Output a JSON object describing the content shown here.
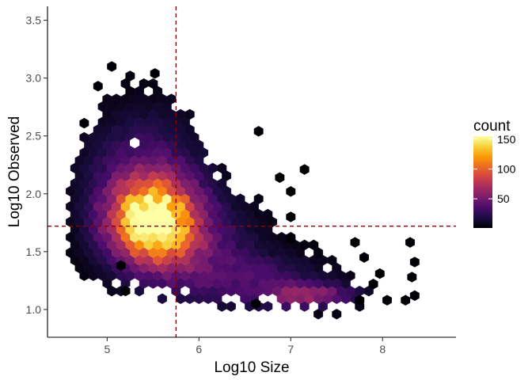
{
  "chart_data": {
    "type": "heatmap",
    "subtype": "hexbin",
    "title": "",
    "xlabel": "Log10 Size",
    "ylabel": "Log10 Observed",
    "xlim": [
      4.35,
      8.8
    ],
    "ylim": [
      0.76,
      3.62
    ],
    "xticks": [
      5,
      6,
      7,
      8
    ],
    "xtick_labels": [
      "5",
      "6",
      "7",
      "8"
    ],
    "yticks": [
      1.0,
      1.5,
      2.0,
      2.5,
      3.0,
      3.5
    ],
    "ytick_labels": [
      "1.0",
      "1.5",
      "2.0",
      "2.5",
      "3.0",
      "3.5"
    ],
    "grid": false,
    "vline": {
      "x": 5.75,
      "color": "#8b0000",
      "style": "dashed"
    },
    "hline": {
      "y": 1.72,
      "color": "#8b0000",
      "style": "dashed"
    },
    "color_scale": {
      "name": "count",
      "palette": "inferno",
      "min": 1,
      "max": 155,
      "stops": [
        "#000004",
        "#1b0c41",
        "#4a0c6b",
        "#781c6d",
        "#a52c60",
        "#cf4446",
        "#ed6925",
        "#fb9b06",
        "#f7d13d",
        "#fcffa4"
      ]
    },
    "legend": {
      "title": "count",
      "position": "right",
      "labels": [
        "150",
        "100",
        "50"
      ],
      "values": [
        150,
        100,
        50
      ]
    },
    "density_model": {
      "description": "hexbin counts estimated from the image",
      "bin_width_x": 0.1,
      "bin_height_y": 0.0664,
      "components": [
        {
          "cx": 5.5,
          "cy": 1.76,
          "sx": 0.32,
          "sy": 0.24,
          "peak": 150
        },
        {
          "cx": 5.4,
          "cy": 2.1,
          "sx": 0.45,
          "sy": 0.42,
          "peak": 38
        },
        {
          "cx": 6.0,
          "cy": 1.5,
          "sx": 0.5,
          "sy": 0.3,
          "peak": 30
        },
        {
          "cx": 7.2,
          "cy": 1.12,
          "sx": 0.35,
          "sy": 0.07,
          "peak": 55
        },
        {
          "cx": 6.7,
          "cy": 1.25,
          "sx": 0.55,
          "sy": 0.15,
          "peak": 26
        }
      ],
      "region": {
        "x_min": 4.62,
        "x_max": 7.85,
        "y_low_segments": [
          [
            4.62,
            1.3
          ],
          [
            5.0,
            1.15
          ],
          [
            5.5,
            1.1
          ],
          [
            5.9,
            1.05
          ],
          [
            6.3,
            1.02
          ],
          [
            7.0,
            0.96
          ],
          [
            7.5,
            0.96
          ],
          [
            7.85,
            1.05
          ]
        ],
        "y_high_segments": [
          [
            4.62,
            2.25
          ],
          [
            4.8,
            2.62
          ],
          [
            5.0,
            2.85
          ],
          [
            5.2,
            3.05
          ],
          [
            5.6,
            2.95
          ],
          [
            5.9,
            2.7
          ],
          [
            6.1,
            2.35
          ],
          [
            6.4,
            2.1
          ],
          [
            6.6,
            2.05
          ],
          [
            6.9,
            1.7
          ],
          [
            7.2,
            1.6
          ],
          [
            7.6,
            1.35
          ],
          [
            7.85,
            1.25
          ]
        ]
      },
      "outliers": [
        {
          "x": 5.05,
          "y": 3.1
        },
        {
          "x": 4.9,
          "y": 2.93
        },
        {
          "x": 5.52,
          "y": 3.04
        },
        {
          "x": 4.75,
          "y": 2.61
        },
        {
          "x": 6.65,
          "y": 2.54
        },
        {
          "x": 7.15,
          "y": 2.21
        },
        {
          "x": 6.88,
          "y": 2.14
        },
        {
          "x": 7.0,
          "y": 1.8
        },
        {
          "x": 7.0,
          "y": 2.02
        },
        {
          "x": 7.0,
          "y": 1.61
        },
        {
          "x": 7.7,
          "y": 1.58
        },
        {
          "x": 7.8,
          "y": 1.45
        },
        {
          "x": 8.3,
          "y": 1.58
        },
        {
          "x": 8.32,
          "y": 1.28
        },
        {
          "x": 8.35,
          "y": 1.41
        },
        {
          "x": 7.97,
          "y": 1.31
        },
        {
          "x": 7.9,
          "y": 1.22
        },
        {
          "x": 8.05,
          "y": 1.08
        },
        {
          "x": 8.25,
          "y": 1.08
        },
        {
          "x": 8.35,
          "y": 1.12
        },
        {
          "x": 7.75,
          "y": 1.08
        },
        {
          "x": 6.62,
          "y": 1.05
        },
        {
          "x": 5.2,
          "y": 1.16
        },
        {
          "x": 5.15,
          "y": 1.38
        }
      ]
    }
  }
}
